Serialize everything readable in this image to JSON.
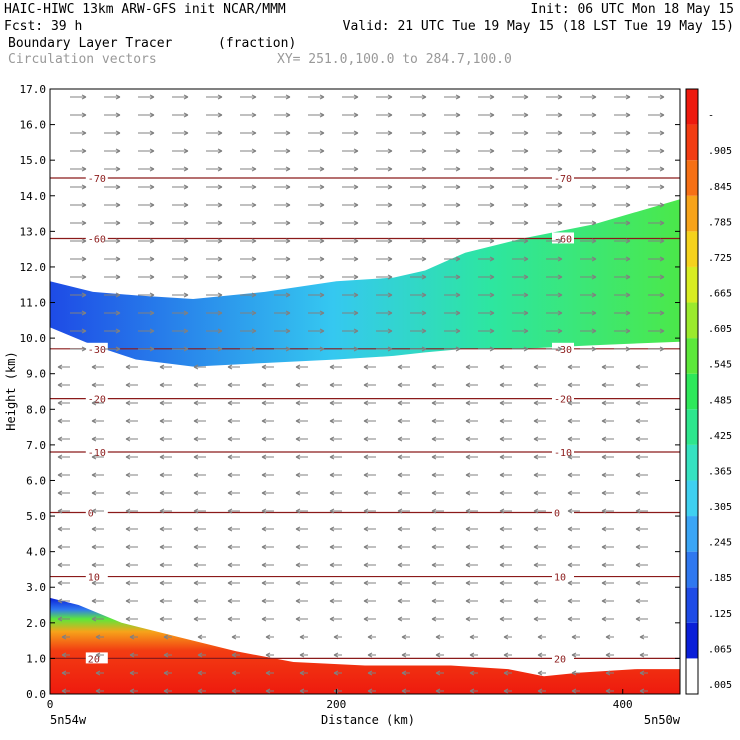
{
  "header": {
    "line1_left": "HAIC-HIWC 13km ARW-GFS init   NCAR/MMM",
    "line1_right": "Init: 06 UTC Mon 18 May 15",
    "line2_left": "Fcst:   39 h",
    "line2_right": "Valid: 21 UTC Tue 19 May 15 (18 LST Tue 19 May 15)",
    "line3_left": "Boundary Layer Tracer",
    "line3_mid": "(fraction)",
    "line4_left": "Circulation vectors",
    "line4_mid": "XY= 251.0,100.0 to 284.7,100.0"
  },
  "colors": {
    "contour": "#8b1a1a",
    "vector": "#808080",
    "axis": "#000000",
    "muted_text": "#999999"
  },
  "chart_data": {
    "type": "heatmap",
    "ylabel": "Height (km)",
    "xlabel": "Distance (km)",
    "xlim": [
      0,
      440
    ],
    "ylim": [
      0,
      17
    ],
    "y_ticks": [
      "0.0",
      "1.0",
      "2.0",
      "3.0",
      "4.0",
      "5.0",
      "6.0",
      "7.0",
      "8.0",
      "9.0",
      "10.0",
      "11.0",
      "12.0",
      "13.0",
      "14.0",
      "15.0",
      "16.0",
      "17.0"
    ],
    "x_ticks": [
      {
        "value": 0,
        "label": "0"
      },
      {
        "value": 200,
        "label": "200"
      },
      {
        "value": 400,
        "label": "400"
      }
    ],
    "x_endpoints": {
      "left": "5n54w",
      "right": "5n50w"
    },
    "colorbar": {
      "labels": [
        ".005",
        ".065",
        ".125",
        ".185",
        ".245",
        ".305",
        ".365",
        ".425",
        ".485",
        ".545",
        ".605",
        ".665",
        ".725",
        ".785",
        ".845",
        ".905",
        "-"
      ],
      "colors": [
        "#ffffff",
        "#0a1fd8",
        "#1e4be6",
        "#2f78f0",
        "#3aa5f5",
        "#3fd0f0",
        "#35e2c0",
        "#2de68d",
        "#2ee85a",
        "#5ce83a",
        "#9bea2d",
        "#d8ec22",
        "#f5d21c",
        "#f7a31a",
        "#f67015",
        "#f23c12",
        "#ee1a0e"
      ]
    },
    "contours": [
      {
        "value": -70,
        "label": "-70",
        "height_km": 14.5
      },
      {
        "value": -60,
        "label": "-60",
        "height_km": 12.8
      },
      {
        "value": -30,
        "label": "-30",
        "height_km": 9.7
      },
      {
        "value": -20,
        "label": "-20",
        "height_km": 8.3
      },
      {
        "value": -10,
        "label": "-10",
        "height_km": 6.8
      },
      {
        "value": 0,
        "label": "0",
        "height_km": 5.1
      },
      {
        "value": 10,
        "label": "10",
        "height_km": 3.3
      },
      {
        "value": 20,
        "label": "20",
        "height_km": 1.0
      }
    ],
    "field_regions": [
      {
        "name": "upper-layer",
        "x": [
          0,
          30,
          60,
          100,
          150,
          200,
          240,
          262,
          290,
          330,
          380,
          440
        ],
        "top_km": [
          11.6,
          11.3,
          11.2,
          11.1,
          11.3,
          11.6,
          11.7,
          11.9,
          12.4,
          12.8,
          13.2,
          13.9
        ],
        "bottom_km": [
          10.3,
          9.8,
          9.4,
          9.2,
          9.3,
          9.4,
          9.5,
          9.6,
          9.7,
          9.7,
          9.8,
          9.9
        ],
        "peak": 0.5
      },
      {
        "name": "boundary-layer",
        "x": [
          0,
          20,
          50,
          90,
          130,
          170,
          220,
          280,
          320,
          345,
          370,
          410,
          440
        ],
        "top_km": [
          2.7,
          2.5,
          2.0,
          1.6,
          1.2,
          0.9,
          0.8,
          0.8,
          0.7,
          0.5,
          0.6,
          0.7,
          0.7
        ],
        "bottom_km": [
          0,
          0,
          0,
          0,
          0,
          0,
          0,
          0,
          0,
          0,
          0,
          0,
          0
        ],
        "peak": 1.0
      }
    ]
  }
}
